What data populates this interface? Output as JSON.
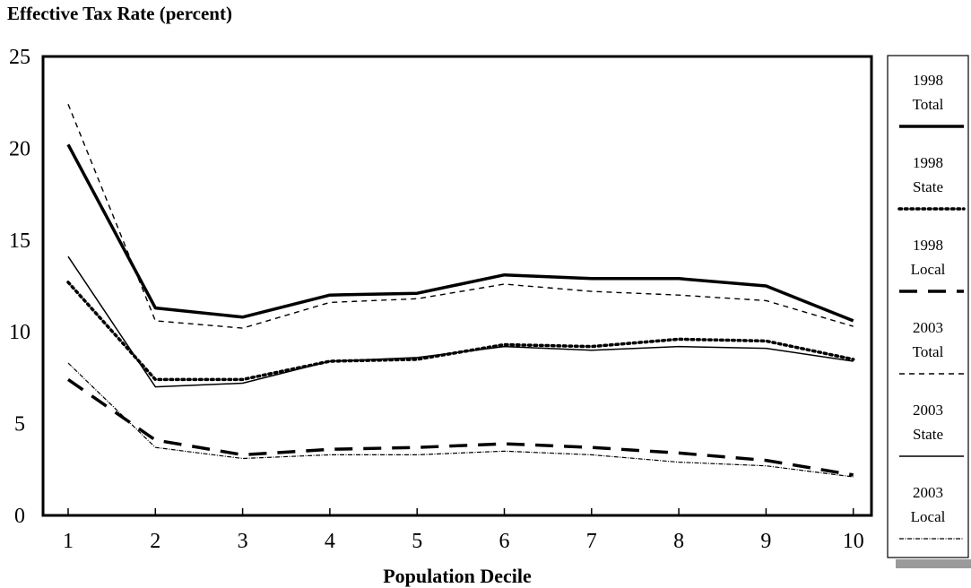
{
  "chart_data": {
    "type": "line",
    "title": "Effective Tax Rate (percent)",
    "xlabel": "Population Decile",
    "ylabel": "",
    "x": [
      1,
      2,
      3,
      4,
      5,
      6,
      7,
      8,
      9,
      10
    ],
    "x_ticks": [
      "1",
      "2",
      "3",
      "4",
      "5",
      "6",
      "7",
      "8",
      "9",
      "10"
    ],
    "ylim": [
      0,
      25
    ],
    "y_ticks": [
      "0",
      "5",
      "10",
      "15",
      "20",
      "25"
    ],
    "grid": false,
    "legend_position": "right",
    "series": [
      {
        "name_line1": "1998",
        "name_line2": "Total",
        "style": "thick-solid",
        "values": [
          20.2,
          11.3,
          10.8,
          12.0,
          12.1,
          13.1,
          12.9,
          12.9,
          12.5,
          10.6
        ]
      },
      {
        "name_line1": "1998",
        "name_line2": "State",
        "style": "dotted",
        "values": [
          12.7,
          7.4,
          7.4,
          8.4,
          8.5,
          9.3,
          9.2,
          9.6,
          9.5,
          8.5
        ]
      },
      {
        "name_line1": "1998",
        "name_line2": "Local",
        "style": "long-dash",
        "values": [
          7.4,
          4.1,
          3.3,
          3.6,
          3.7,
          3.9,
          3.7,
          3.4,
          3.0,
          2.2
        ]
      },
      {
        "name_line1": "2003",
        "name_line2": "Total",
        "style": "short-dash",
        "values": [
          22.4,
          10.6,
          10.2,
          11.6,
          11.8,
          12.6,
          12.2,
          12.0,
          11.7,
          10.3
        ]
      },
      {
        "name_line1": "2003",
        "name_line2": "State",
        "style": "thin-solid",
        "values": [
          14.1,
          7.0,
          7.2,
          8.4,
          8.6,
          9.2,
          9.0,
          9.2,
          9.1,
          8.4
        ]
      },
      {
        "name_line1": "2003",
        "name_line2": "Local",
        "style": "dash-dot",
        "values": [
          8.3,
          3.7,
          3.1,
          3.3,
          3.3,
          3.5,
          3.3,
          2.9,
          2.7,
          2.1
        ]
      }
    ]
  }
}
